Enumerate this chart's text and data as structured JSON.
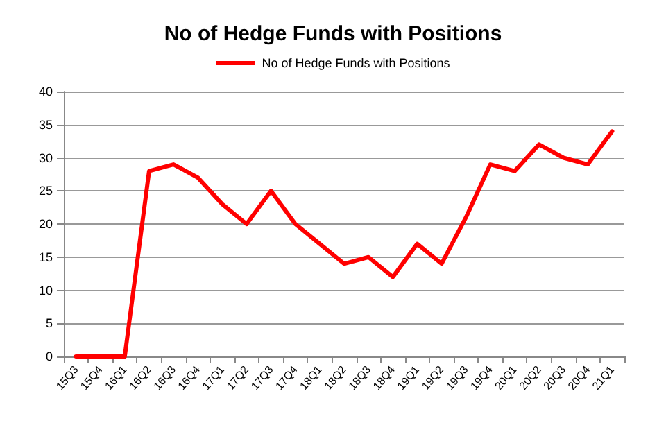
{
  "chart_data": {
    "type": "line",
    "title": "No of Hedge Funds with Positions",
    "categories": [
      "15Q3",
      "15Q4",
      "16Q1",
      "16Q2",
      "16Q3",
      "16Q4",
      "17Q1",
      "17Q2",
      "17Q3",
      "17Q4",
      "18Q1",
      "18Q2",
      "18Q3",
      "18Q4",
      "19Q1",
      "19Q2",
      "19Q3",
      "19Q4",
      "20Q1",
      "20Q2",
      "20Q3",
      "20Q4",
      "21Q1"
    ],
    "series": [
      {
        "name": "No of Hedge Funds with Positions",
        "color": "#ff0000",
        "values": [
          0,
          0,
          0,
          28,
          29,
          27,
          23,
          20,
          25,
          20,
          17,
          14,
          15,
          12,
          17,
          14,
          21,
          29,
          28,
          32,
          30,
          29,
          34
        ]
      }
    ],
    "ylim": [
      0,
      40
    ],
    "yticks": [
      0,
      5,
      10,
      15,
      20,
      25,
      30,
      35,
      40
    ],
    "grid": "y",
    "legend": "top",
    "marker": "none",
    "line_style": "solid"
  }
}
